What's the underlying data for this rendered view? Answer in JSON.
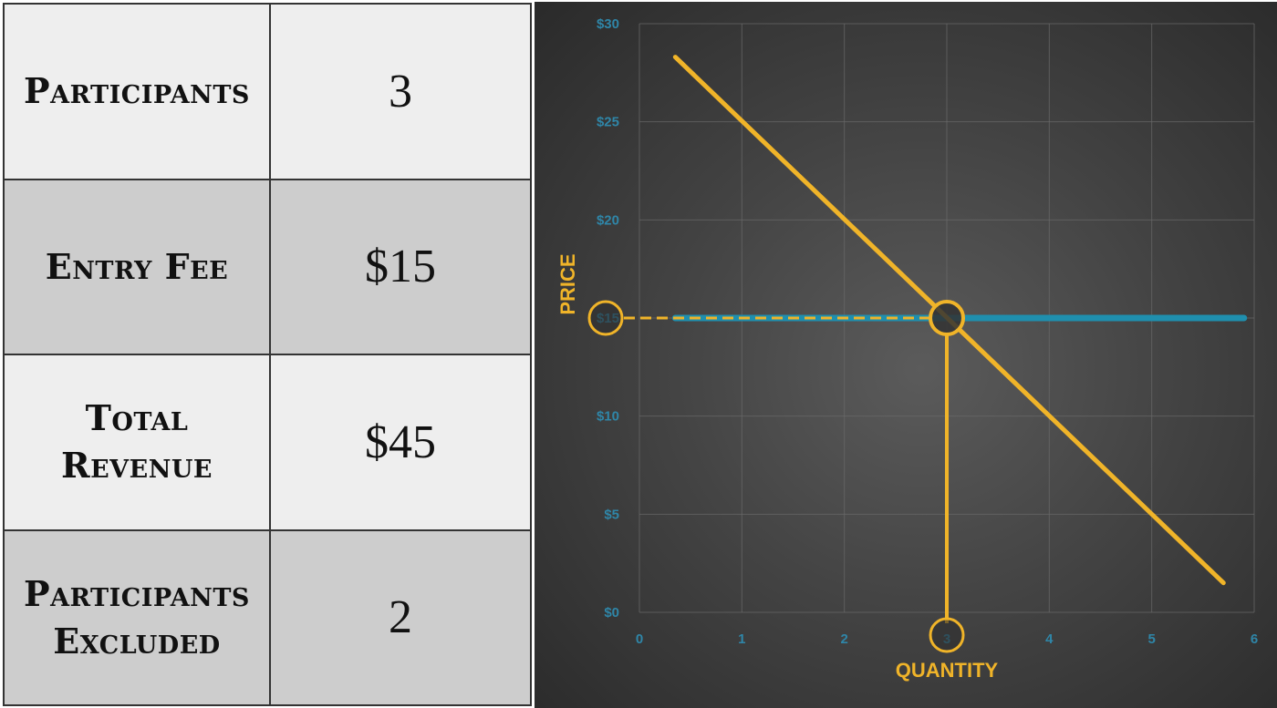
{
  "table": {
    "rows": [
      {
        "label": "Participants",
        "value": "3"
      },
      {
        "label": "Entry Fee",
        "value": "$15"
      },
      {
        "label": "Total Revenue",
        "value": "$45"
      },
      {
        "label": "Participants Excluded",
        "value": "2"
      }
    ]
  },
  "colors": {
    "demand_line": "#f0b429",
    "supply_line": "#1f8fae",
    "tick_label": "#2f86a8",
    "background": "#3c3c3c",
    "grid": "#6a6a6a"
  },
  "chart_data": {
    "type": "line",
    "title": "",
    "xlabel": "QUANTITY",
    "ylabel": "PRICE",
    "xlim": [
      0,
      6
    ],
    "ylim": [
      0,
      30
    ],
    "x_ticks": [
      "0",
      "1",
      "2",
      "3",
      "4",
      "5",
      "6"
    ],
    "y_ticks": [
      "$0",
      "$5",
      "$10",
      "$15",
      "$20",
      "$25",
      "$30"
    ],
    "grid": true,
    "series": [
      {
        "name": "",
        "color": "#f0b429",
        "points": [
          [
            0.35,
            28.3
          ],
          [
            5.7,
            1.5
          ]
        ]
      },
      {
        "name": "",
        "color": "#1f8fae",
        "points": [
          [
            0.35,
            15
          ],
          [
            5.9,
            15
          ]
        ]
      }
    ],
    "equilibrium": {
      "x": 3,
      "y": 15
    },
    "highlight_x_tick": "3",
    "highlight_y_tick": "$15"
  }
}
